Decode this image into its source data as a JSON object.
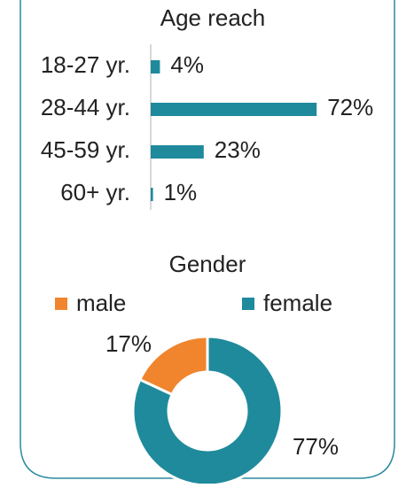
{
  "chart_data": [
    {
      "type": "bar",
      "orientation": "horizontal",
      "title": "Age reach",
      "categories": [
        "18-27 yr.",
        "28-44 yr.",
        "45-59 yr.",
        "60+ yr."
      ],
      "values": [
        4,
        72,
        23,
        1
      ],
      "value_labels": [
        "4%",
        "72%",
        "23%",
        "1%"
      ],
      "color": "#1f8a9c"
    },
    {
      "type": "donut",
      "title": "Gender",
      "categories": [
        "male",
        "female"
      ],
      "values": [
        17,
        77
      ],
      "value_labels": [
        "17%",
        "77%"
      ],
      "colors": [
        "#f0852d",
        "#1f8a9c"
      ],
      "legend": "top"
    }
  ]
}
